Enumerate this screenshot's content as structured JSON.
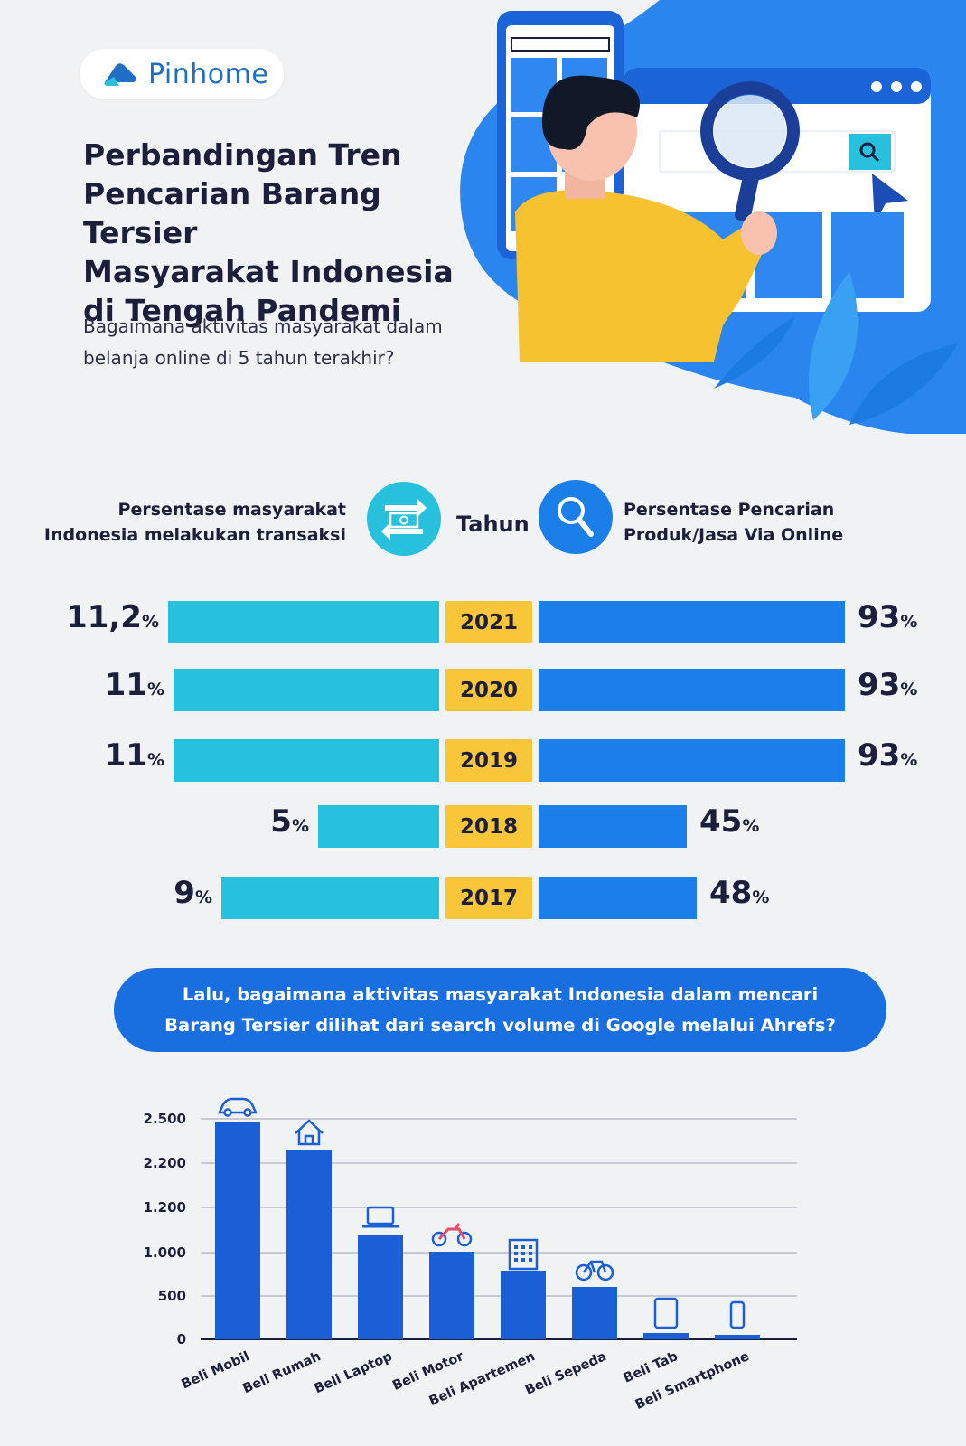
{
  "brand": {
    "name": "Pinhome",
    "color": "#1f6fc7"
  },
  "title": "Perbandingan Tren\nPencarian Barang Tersier\nMasyarakat Indonesia\ndi Tengah Pandemi",
  "subtitle": "Bagaimana aktivitas masyarakat dalam\nbelanja online di 5 tahun terakhir?",
  "colors": {
    "cyan": "#27c0dd",
    "blue": "#1a7fe8",
    "yellow": "#f9c63a",
    "dark_blue": "#1a6fe0",
    "bar_blue": "#1b5fd6"
  },
  "comparison": {
    "left_label": "Persentase masyarakat\nIndonesia melakukan transaksi",
    "center_label": "Tahun",
    "right_label": "Persentase Pencarian\nProduk/Jasa Via Online",
    "left_icon": "money-transfer-icon",
    "right_icon": "magnifier-icon"
  },
  "question": "Lalu, bagaimana aktivitas masyarakat Indonesia dalam mencari\nBarang Tersier dilihat dari search volume di Google melalui Ahrefs?",
  "chart_data": [
    {
      "type": "bar",
      "orientation": "horizontal-butterfly",
      "categories": [
        "2021",
        "2020",
        "2019",
        "2018",
        "2017"
      ],
      "series": [
        {
          "name": "Persentase masyarakat Indonesia melakukan transaksi",
          "values": [
            11.2,
            11,
            11,
            5,
            9
          ],
          "labels": [
            "11,2",
            "11",
            "11",
            "5",
            "9"
          ],
          "unit": "%"
        },
        {
          "name": "Persentase Pencarian Produk/Jasa Via Online",
          "values": [
            93,
            93,
            93,
            45,
            48
          ],
          "labels": [
            "93",
            "93",
            "93",
            "45",
            "48"
          ],
          "unit": "%"
        }
      ]
    },
    {
      "type": "bar",
      "categories": [
        "Beli Mobil",
        "Beli Rumah",
        "Beli Laptop",
        "Beli Motor",
        "Beli Apartemen",
        "Beli Sepeda",
        "Beli Tab",
        "Beli Smartphone"
      ],
      "icons": [
        "car-icon",
        "house-icon",
        "laptop-icon",
        "motorbike-icon",
        "apartment-icon",
        "bicycle-icon",
        "tablet-icon",
        "smartphone-icon"
      ],
      "yticks": [
        {
          "value": 0,
          "label": "0"
        },
        {
          "value": 500,
          "label": "500"
        },
        {
          "value": 1000,
          "label": "1.000"
        },
        {
          "value": 1200,
          "label": "1.200"
        },
        {
          "value": 2200,
          "label": "2.200"
        },
        {
          "value": 2500,
          "label": "2.500"
        }
      ],
      "values": [
        2500,
        2200,
        1200,
        1000,
        800,
        600,
        50,
        30
      ],
      "grid": true
    }
  ]
}
